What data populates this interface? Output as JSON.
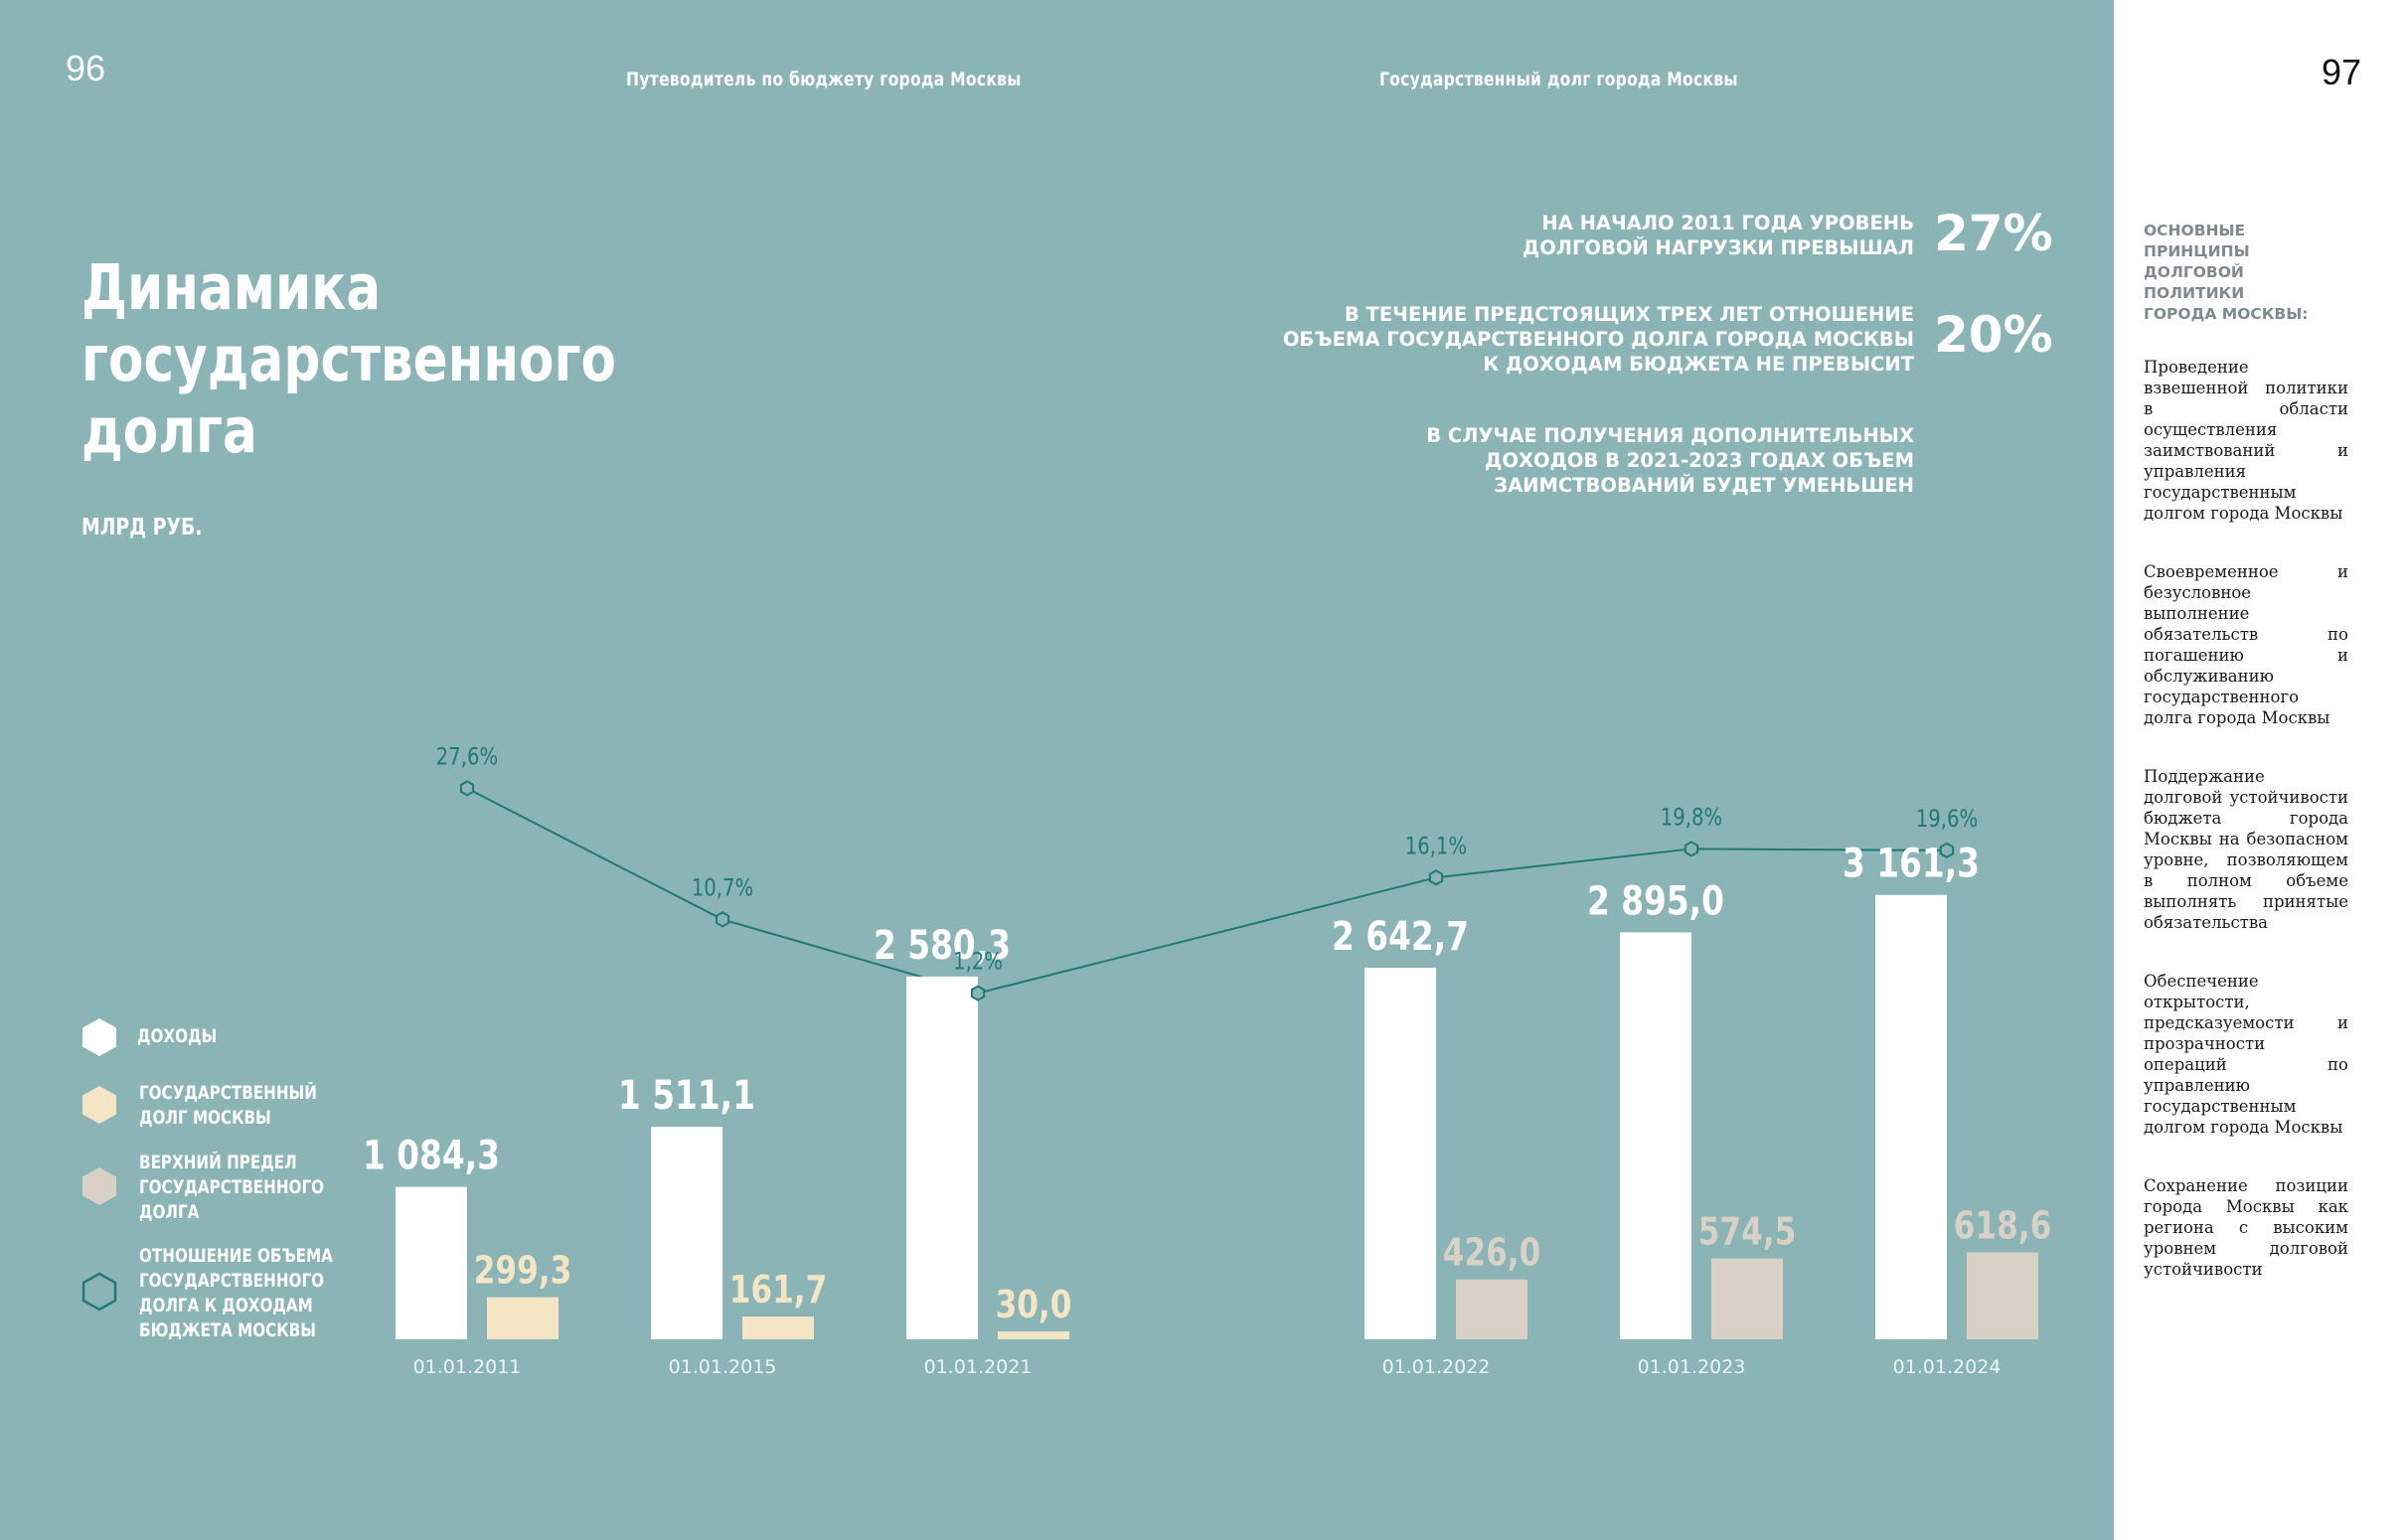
{
  "page": {
    "left_number": "96",
    "right_number": "97"
  },
  "header": {
    "left_running": "Путеводитель по бюджету города Москвы",
    "right_running": "Государственный долг города Москвы"
  },
  "title": {
    "line1": "Динамика",
    "line2": "государственного",
    "line3": "долга"
  },
  "unit": "МЛРД РУБ.",
  "statements": [
    {
      "lines": [
        "НА НАЧАЛО 2011 ГОДА УРОВЕНЬ",
        "ДОЛГОВОЙ НАГРУЗКИ ПРЕВЫШАЛ"
      ],
      "value": "27%"
    },
    {
      "lines": [
        "В ТЕЧЕНИЕ ПРЕДСТОЯЩИХ ТРЕХ ЛЕТ ОТНОШЕНИЕ",
        "ОБЪЕМА ГОСУДАРСТВЕННОГО ДОЛГА ГОРОДА МОСКВЫ",
        "К ДОХОДАМ БЮДЖЕТА НЕ ПРЕВЫСИТ"
      ],
      "value": "20%"
    },
    {
      "lines": [
        "В СЛУЧАЕ ПОЛУЧЕНИЯ ДОПОЛНИТЕЛЬНЫХ",
        "ДОХОДОВ В 2021-2023 ГОДАХ ОБЪЕМ",
        "ЗАИМСТВОВАНИЙ БУДЕТ УМЕНЬШЕН"
      ],
      "value": ""
    }
  ],
  "legend": [
    {
      "lines": [
        "ДОХОДЫ"
      ],
      "color": "#ffffff",
      "icon": "hexagon-filled"
    },
    {
      "lines": [
        "ГОСУДАРСТВЕННЫЙ",
        "ДОЛГ МОСКВЫ"
      ],
      "color": "#f4e6c4",
      "icon": "hexagon-filled"
    },
    {
      "lines": [
        "ВЕРХНИЙ ПРЕДЕЛ",
        "ГОСУДАРСТВЕННОГО",
        "ДОЛГА"
      ],
      "color": "#d9d1c5",
      "icon": "hexagon-filled"
    },
    {
      "lines": [
        "ОТНОШЕНИЕ ОБЪЕМА",
        "ГОСУДАРСТВЕННОГО",
        "ДОЛГА К ДОХОДАМ",
        "БЮДЖЕТА МОСКВЫ"
      ],
      "color": "#1f7a76",
      "icon": "hexagon-outline"
    }
  ],
  "chart_data": {
    "type": "bar",
    "categories": [
      "01.01.2011",
      "01.01.2015",
      "01.01.2021",
      "01.01.2022",
      "01.01.2023",
      "01.01.2024"
    ],
    "series": [
      {
        "name": "ДОХОДЫ",
        "values": [
          1084.3,
          1511.1,
          2580.3,
          2642.7,
          2895.0,
          3161.3
        ],
        "labels": [
          "1 084,3",
          "1 511,1",
          "2 580,3",
          "2 642,7",
          "2 895,0",
          "3 161,3"
        ],
        "color": "#ffffff"
      },
      {
        "name": "ГОСУДАРСТВЕННЫЙ ДОЛГ МОСКВЫ",
        "values": [
          299.3,
          161.7,
          30.0,
          null,
          null,
          null
        ],
        "labels": [
          "299,3",
          "161,7",
          "30,0",
          "",
          "",
          ""
        ],
        "color": "#f4e6c4"
      },
      {
        "name": "ВЕРХНИЙ ПРЕДЕЛ ГОСУДАРСТВЕННОГО ДОЛГА",
        "values": [
          null,
          null,
          null,
          426.0,
          574.5,
          618.6
        ],
        "labels": [
          "",
          "",
          "",
          "426,0",
          "574,5",
          "618,6"
        ],
        "color": "#d9d1c5"
      },
      {
        "name": "ОТНОШЕНИЕ ОБЪЕМА ГОСУДАРСТВЕННОГО ДОЛГА К ДОХОДАМ БЮДЖЕТА МОСКВЫ",
        "type": "line",
        "values": [
          27.6,
          10.7,
          1.2,
          16.1,
          19.8,
          19.6
        ],
        "labels": [
          "27,6%",
          "10,7%",
          "1,2%",
          "16,1%",
          "19,8%",
          "19,6%"
        ],
        "color": "#1f7a76"
      }
    ],
    "ylabel": "МЛРД РУБ.",
    "grid": false
  },
  "sidebar": {
    "heading": [
      "ОСНОВНЫЕ ПРИНЦИПЫ",
      "ДОЛГОВОЙ ПОЛИТИКИ",
      "ГОРОДА МОСКВЫ:"
    ],
    "paragraphs": [
      "Проведение взвешенной политики в области осуществления заимствований и управления государственным долгом города Москвы",
      "Своевременное и безусловное выполнение обязательств по погашению и обслуживанию государственного долга города Москвы",
      "Поддержание долговой устойчивости бюджета города Москвы на безопасном уровне, позволяющем в полном объеме выполнять принятые обязательства",
      "Обеспечение открытости, предсказуемости и прозрачности операций по управлению государственным долгом города Москвы",
      "Сохранение позиции города Москвы как региона с высоким уровнем долговой устойчивости"
    ]
  }
}
